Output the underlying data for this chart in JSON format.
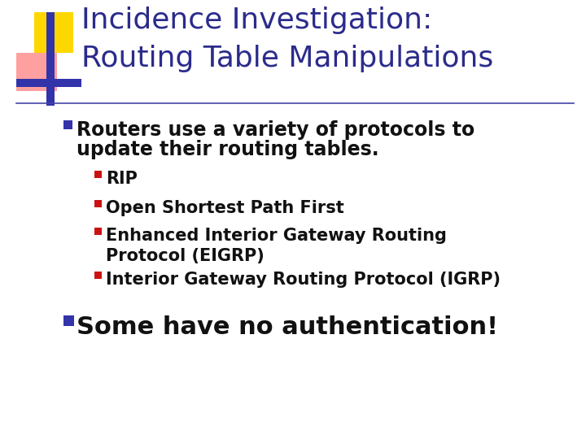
{
  "title_line1": "Incidence Investigation:",
  "title_line2": "Routing Table Manipulations",
  "title_color": "#2B2B8C",
  "background_color": "#FFFFFF",
  "separator_line_color": "#4444AA",
  "bullet_blue_color": "#3333AA",
  "bullet_red_color": "#CC1111",
  "bullet1_text_line1": "Routers use a variety of protocols to",
  "bullet1_text_line2": "update their routing tables.",
  "sub_bullets": [
    "RIP",
    "Open Shortest Path First",
    "Enhanced Interior Gateway Routing\nProtocol (EIGRP)",
    "Interior Gateway Routing Protocol (IGRP)"
  ],
  "bullet2_text": "Some have no authentication!",
  "title_fontsize": 26,
  "bullet1_fontsize": 17,
  "sub_bullet_fontsize": 15,
  "bullet2_fontsize": 22,
  "decor_yellow_color": "#FFD700",
  "decor_pink_color": "#FF9090",
  "decor_blue_color": "#3333AA"
}
